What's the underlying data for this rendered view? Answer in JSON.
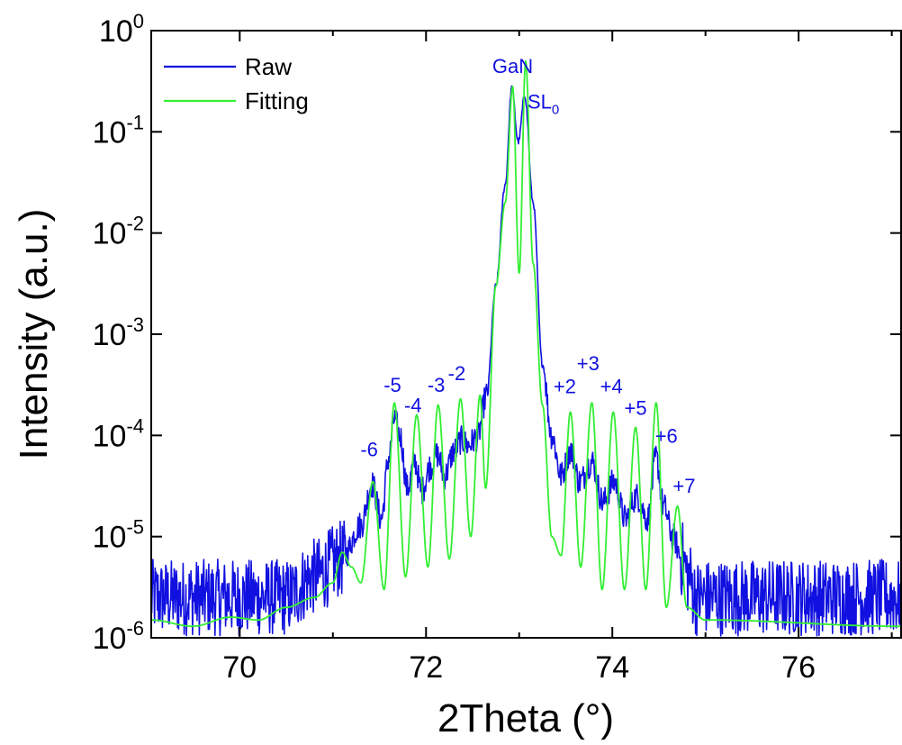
{
  "chart_data": {
    "type": "line",
    "xlabel": "2Theta (°)",
    "ylabel": "Intensity (a.u.)",
    "xlim": [
      69.05,
      77.1
    ],
    "ylim": [
      1e-06,
      1
    ],
    "yscale": "log",
    "x_ticks": [
      70,
      72,
      74,
      76
    ],
    "y_ticks": [
      {
        "value": 1e-06,
        "base": "10",
        "exp": "-6"
      },
      {
        "value": 1e-05,
        "base": "10",
        "exp": "-5"
      },
      {
        "value": 0.0001,
        "base": "10",
        "exp": "-4"
      },
      {
        "value": 0.001,
        "base": "10",
        "exp": "-3"
      },
      {
        "value": 0.01,
        "base": "10",
        "exp": "-2"
      },
      {
        "value": 0.1,
        "base": "10",
        "exp": "-1"
      },
      {
        "value": 1,
        "base": "10",
        "exp": "0"
      }
    ],
    "grid": false,
    "legend_position": "top-left",
    "series": [
      {
        "name": "Raw",
        "color": "#1010e0",
        "noise": true,
        "x": [
          69.05,
          70.5,
          70.8,
          71.1,
          71.3,
          71.42,
          71.52,
          71.6,
          71.66,
          71.72,
          71.8,
          71.88,
          71.95,
          72.05,
          72.12,
          72.2,
          72.3,
          72.38,
          72.45,
          72.55,
          72.65,
          72.75,
          72.85,
          72.92,
          72.99,
          73.06,
          73.15,
          73.25,
          73.35,
          73.45,
          73.55,
          73.65,
          73.78,
          73.9,
          74.02,
          74.14,
          74.26,
          74.38,
          74.47,
          74.55,
          74.65,
          74.75,
          74.82,
          74.9,
          77.1
        ],
        "y": [
          2.5e-06,
          2.5e-06,
          4e-06,
          6e-06,
          1.3e-05,
          3.3e-05,
          1.5e-05,
          6e-05,
          0.000145,
          0.0001,
          3e-05,
          5.5e-05,
          2.8e-05,
          5e-05,
          6.5e-05,
          4e-05,
          7e-05,
          9e-05,
          8e-05,
          9.5e-05,
          0.00025,
          0.003,
          0.03,
          0.27,
          0.08,
          0.23,
          0.02,
          0.0005,
          0.0001,
          4e-05,
          7e-05,
          3.5e-05,
          5.5e-05,
          2.2e-05,
          3.5e-05,
          1.5e-05,
          2.5e-05,
          1.5e-05,
          6e-05,
          2e-05,
          1e-05,
          6e-06,
          4e-06,
          2.5e-06,
          2.5e-06
        ]
      },
      {
        "name": "Fitting",
        "color": "#33ee33",
        "noise": false,
        "x": [
          69.05,
          69.5,
          69.9,
          70.2,
          70.5,
          70.8,
          71.0,
          71.1,
          71.2,
          71.3,
          71.43,
          71.55,
          71.66,
          71.78,
          71.9,
          72.02,
          72.13,
          72.25,
          72.37,
          72.48,
          72.58,
          72.64,
          72.75,
          72.85,
          72.93,
          73.0,
          73.07,
          73.15,
          73.25,
          73.35,
          73.45,
          73.55,
          73.66,
          73.78,
          73.89,
          74.01,
          74.13,
          74.25,
          74.36,
          74.47,
          74.58,
          74.7,
          74.8,
          75.0,
          77.1
        ],
        "y": [
          1.5e-06,
          1.3e-06,
          1.6e-06,
          1.5e-06,
          2e-06,
          2.5e-06,
          3.5e-06,
          7e-06,
          5e-06,
          3.5e-06,
          3.5e-05,
          3e-06,
          0.00021,
          4e-06,
          0.00016,
          5e-06,
          0.0002,
          6e-06,
          0.00023,
          1e-05,
          0.00025,
          3e-05,
          0.003,
          0.02,
          0.28,
          0.004,
          0.5,
          0.005,
          0.0002,
          1e-05,
          6.5e-06,
          0.00017,
          5e-06,
          0.00021,
          3e-06,
          0.00017,
          3e-06,
          0.00012,
          3e-06,
          0.00021,
          2e-06,
          2e-05,
          2e-06,
          1.5e-06,
          1.3e-06
        ]
      }
    ],
    "annotations": [
      {
        "text": "GaN",
        "sub": "",
        "x": 72.93,
        "y": 0.38,
        "color": "#1010e0"
      },
      {
        "text": "SL",
        "sub": "0",
        "x": 73.26,
        "y": 0.17,
        "color": "#1010e0"
      },
      {
        "text": "-6",
        "sub": "",
        "x": 71.39,
        "y": 6.2e-05,
        "color": "#1010e0"
      },
      {
        "text": "-5",
        "sub": "",
        "x": 71.64,
        "y": 0.00027,
        "color": "#1010e0"
      },
      {
        "text": "-4",
        "sub": "",
        "x": 71.86,
        "y": 0.00017,
        "color": "#1010e0"
      },
      {
        "text": "-3",
        "sub": "",
        "x": 72.11,
        "y": 0.00027,
        "color": "#1010e0"
      },
      {
        "text": "-2",
        "sub": "",
        "x": 72.33,
        "y": 0.00035,
        "color": "#1010e0"
      },
      {
        "text": "+2",
        "sub": "",
        "x": 73.49,
        "y": 0.00026,
        "color": "#1010e0"
      },
      {
        "text": "+3",
        "sub": "",
        "x": 73.74,
        "y": 0.00044,
        "color": "#1010e0"
      },
      {
        "text": "+4",
        "sub": "",
        "x": 73.99,
        "y": 0.00026,
        "color": "#1010e0"
      },
      {
        "text": "+5",
        "sub": "",
        "x": 74.25,
        "y": 0.00016,
        "color": "#1010e0"
      },
      {
        "text": "+6",
        "sub": "",
        "x": 74.58,
        "y": 8.5e-05,
        "color": "#1010e0"
      },
      {
        "text": "+7",
        "sub": "",
        "x": 74.77,
        "y": 2.7e-05,
        "color": "#1010e0"
      }
    ]
  }
}
